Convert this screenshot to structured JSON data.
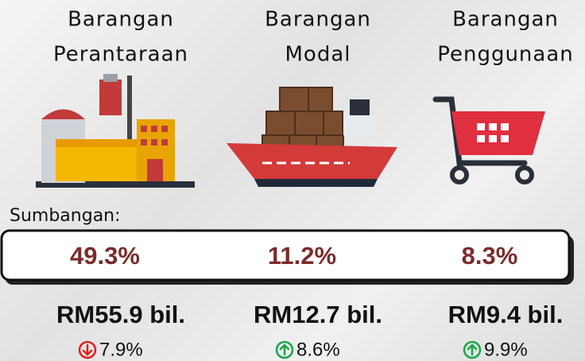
{
  "label": "Sumbangan:",
  "columns": [
    {
      "title": [
        "Barangan",
        "Perantaraan"
      ],
      "share": "49.3%",
      "value": "RM55.9 bil.",
      "change": "7.9%",
      "direction": "down"
    },
    {
      "title": [
        "Barangan",
        "Modal"
      ],
      "share": "11.2%",
      "value": "RM12.7 bil.",
      "change": "8.6%",
      "direction": "up"
    },
    {
      "title": [
        "Barangan",
        "Penggunaan"
      ],
      "share": "8.3%",
      "value": "RM9.4 bil.",
      "change": "9.9%",
      "direction": "up"
    }
  ]
}
